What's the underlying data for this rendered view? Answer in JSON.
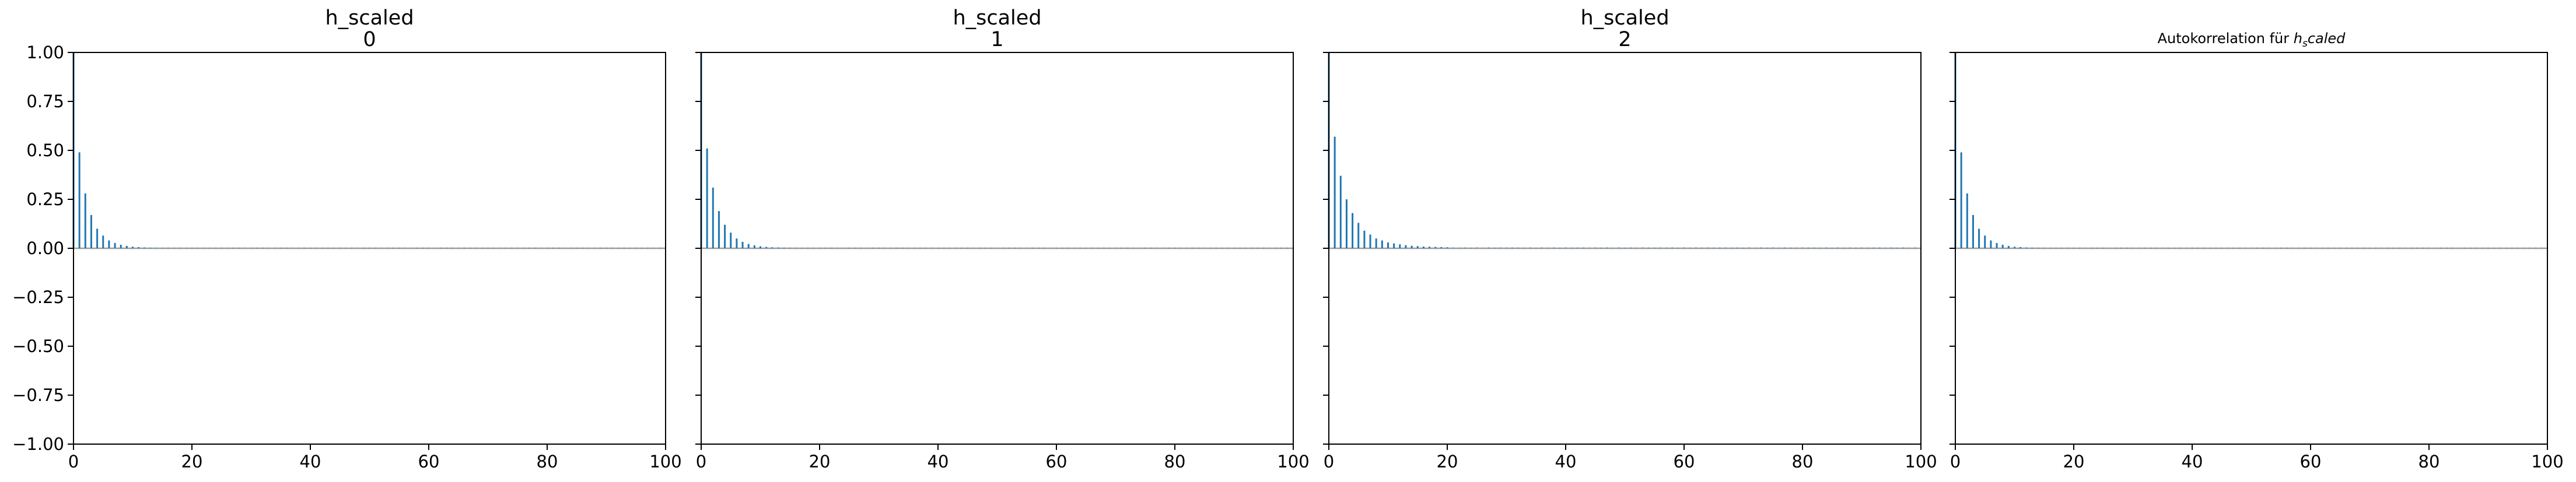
{
  "figure": {
    "background": "#ffffff",
    "bar_color": "#1f77b4",
    "zero_line_color": "#9e9e9e"
  },
  "chart_data": [
    {
      "type": "bar",
      "title_lines": [
        "h_scaled",
        "0"
      ],
      "xlim": [
        0,
        100
      ],
      "ylim": [
        -1.0,
        1.0
      ],
      "x_ticks": [
        0,
        20,
        40,
        60,
        80,
        100
      ],
      "y_ticks": [
        "1.00",
        "0.75",
        "0.50",
        "0.25",
        "0.00",
        "−0.25",
        "−0.50",
        "−0.75",
        "−1.00"
      ],
      "show_y_tick_labels": true,
      "grid": false,
      "lags": [
        0,
        1,
        2,
        3,
        4,
        5,
        6,
        7,
        8,
        9,
        10,
        11,
        12,
        13,
        14,
        15
      ],
      "values": [
        1.0,
        0.49,
        0.28,
        0.17,
        0.1,
        0.065,
        0.04,
        0.027,
        0.018,
        0.012,
        0.008,
        0.006,
        0.004,
        0.003,
        0.002,
        0.002
      ],
      "tail_level": 0.003
    },
    {
      "type": "bar",
      "title_lines": [
        "h_scaled",
        "1"
      ],
      "xlim": [
        0,
        100
      ],
      "ylim": [
        -1.0,
        1.0
      ],
      "x_ticks": [
        0,
        20,
        40,
        60,
        80,
        100
      ],
      "y_ticks": [
        "1.00",
        "0.75",
        "0.50",
        "0.25",
        "0.00",
        "−0.25",
        "−0.50",
        "−0.75",
        "−1.00"
      ],
      "show_y_tick_labels": false,
      "grid": false,
      "lags": [
        0,
        1,
        2,
        3,
        4,
        5,
        6,
        7,
        8,
        9,
        10,
        11,
        12,
        13,
        14,
        15
      ],
      "values": [
        1.0,
        0.51,
        0.31,
        0.19,
        0.12,
        0.08,
        0.05,
        0.033,
        0.022,
        0.015,
        0.01,
        0.007,
        0.005,
        0.004,
        0.003,
        0.002
      ],
      "tail_level": 0.003
    },
    {
      "type": "bar",
      "title_lines": [
        "h_scaled",
        "2"
      ],
      "xlim": [
        0,
        100
      ],
      "ylim": [
        -1.0,
        1.0
      ],
      "x_ticks": [
        0,
        20,
        40,
        60,
        80,
        100
      ],
      "y_ticks": [
        "1.00",
        "0.75",
        "0.50",
        "0.25",
        "0.00",
        "−0.25",
        "−0.50",
        "−0.75",
        "−1.00"
      ],
      "show_y_tick_labels": false,
      "grid": false,
      "lags": [
        0,
        1,
        2,
        3,
        4,
        5,
        6,
        7,
        8,
        9,
        10,
        11,
        12,
        13,
        14,
        15,
        16,
        17,
        18,
        19,
        20
      ],
      "values": [
        1.0,
        0.57,
        0.37,
        0.25,
        0.18,
        0.13,
        0.09,
        0.07,
        0.05,
        0.04,
        0.03,
        0.025,
        0.02,
        0.016,
        0.013,
        0.011,
        0.009,
        0.008,
        0.007,
        0.006,
        0.005
      ],
      "tail_level": 0.004
    },
    {
      "type": "bar",
      "title_lines": [],
      "title_prefix": "Autokorrelation für ",
      "title_math_base": "h",
      "title_math_sub": "s",
      "title_math_rest": "caled",
      "xlim": [
        0,
        100
      ],
      "ylim": [
        -1.0,
        1.0
      ],
      "x_ticks": [
        0,
        20,
        40,
        60,
        80,
        100
      ],
      "y_ticks": [
        "1.00",
        "0.75",
        "0.50",
        "0.25",
        "0.00",
        "−0.25",
        "−0.50",
        "−0.75",
        "−1.00"
      ],
      "show_y_tick_labels": false,
      "grid": false,
      "lags": [
        0,
        1,
        2,
        3,
        4,
        5,
        6,
        7,
        8,
        9,
        10,
        11,
        12,
        13,
        14,
        15
      ],
      "values": [
        1.0,
        0.49,
        0.28,
        0.17,
        0.1,
        0.065,
        0.04,
        0.027,
        0.018,
        0.012,
        0.008,
        0.006,
        0.004,
        0.003,
        0.002,
        0.002
      ],
      "tail_level": 0.003
    }
  ]
}
